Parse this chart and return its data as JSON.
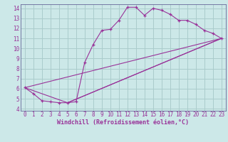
{
  "title": "",
  "xlabel": "Windchill (Refroidissement éolien,°C)",
  "bg_color": "#cce8e8",
  "grid_color": "#aacccc",
  "line_color": "#993399",
  "spine_color": "#666699",
  "xlim": [
    -0.5,
    23.5
  ],
  "ylim": [
    3.8,
    14.4
  ],
  "xticks": [
    0,
    1,
    2,
    3,
    4,
    5,
    6,
    7,
    8,
    9,
    10,
    11,
    12,
    13,
    14,
    15,
    16,
    17,
    18,
    19,
    20,
    21,
    22,
    23
  ],
  "yticks": [
    4,
    5,
    6,
    7,
    8,
    9,
    10,
    11,
    12,
    13,
    14
  ],
  "series1_x": [
    0,
    1,
    2,
    3,
    4,
    5,
    6,
    7,
    8,
    9,
    10,
    11,
    12,
    13,
    14,
    15,
    16,
    17,
    18,
    19,
    20,
    21,
    22,
    23
  ],
  "series1_y": [
    6.1,
    5.5,
    4.8,
    4.7,
    4.6,
    4.6,
    4.7,
    8.6,
    10.4,
    11.8,
    11.9,
    12.8,
    14.1,
    14.1,
    13.3,
    14.0,
    13.8,
    13.4,
    12.8,
    12.8,
    12.4,
    11.8,
    11.5,
    11.0
  ],
  "series2_x": [
    0,
    5,
    23
  ],
  "series2_y": [
    6.1,
    4.6,
    11.0
  ],
  "series3_x": [
    5,
    23
  ],
  "series3_y": [
    4.6,
    11.0
  ],
  "series4_x": [
    0,
    23
  ],
  "series4_y": [
    6.1,
    11.0
  ],
  "tick_fontsize": 5.5,
  "xlabel_fontsize": 6.0
}
